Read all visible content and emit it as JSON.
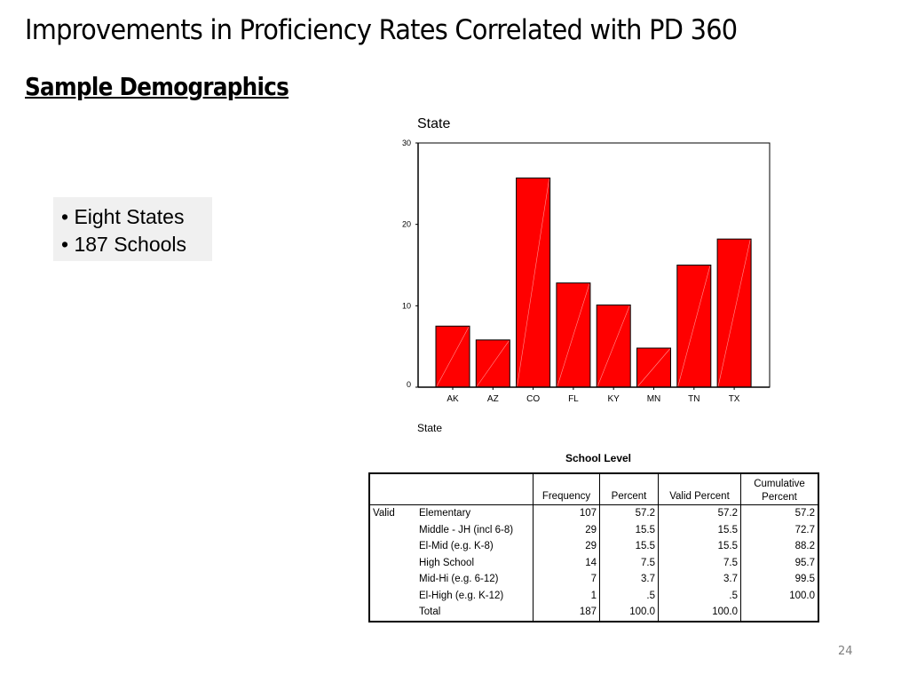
{
  "slide": {
    "title": "Improvements in Proficiency Rates Correlated with PD 360",
    "subtitle": "Sample Demographics",
    "bullets": [
      "• Eight States",
      "• 187 Schools"
    ],
    "page_number": "24"
  },
  "chart_data": {
    "type": "bar",
    "title": "State",
    "xlabel": "State",
    "ylabel": "",
    "categories": [
      "AK",
      "AZ",
      "CO",
      "FL",
      "KY",
      "MN",
      "TN",
      "TX"
    ],
    "values": [
      7.5,
      5.8,
      25.7,
      12.8,
      10.1,
      4.8,
      15.0,
      18.2
    ],
    "ylim": [
      0,
      30
    ],
    "yticks": [
      0,
      10,
      20,
      30
    ],
    "grid": false,
    "legend": "none",
    "bar_color": "#ff0000"
  },
  "table": {
    "title": "School Level",
    "headers": [
      "",
      "",
      "Frequency",
      "Percent",
      "Valid Percent",
      "Cumulative Percent"
    ],
    "group_label": "Valid",
    "rows": [
      {
        "label": "Elementary",
        "frequency": "107",
        "percent": "57.2",
        "valid_percent": "57.2",
        "cumulative_percent": "57.2"
      },
      {
        "label": "Middle - JH (incl 6-8)",
        "frequency": "29",
        "percent": "15.5",
        "valid_percent": "15.5",
        "cumulative_percent": "72.7"
      },
      {
        "label": "El-Mid (e.g. K-8)",
        "frequency": "29",
        "percent": "15.5",
        "valid_percent": "15.5",
        "cumulative_percent": "88.2"
      },
      {
        "label": "High School",
        "frequency": "14",
        "percent": "7.5",
        "valid_percent": "7.5",
        "cumulative_percent": "95.7"
      },
      {
        "label": "Mid-Hi (e.g. 6-12)",
        "frequency": "7",
        "percent": "3.7",
        "valid_percent": "3.7",
        "cumulative_percent": "99.5"
      },
      {
        "label": "El-High (e.g. K-12)",
        "frequency": "1",
        "percent": ".5",
        "valid_percent": ".5",
        "cumulative_percent": "100.0"
      },
      {
        "label": "Total",
        "frequency": "187",
        "percent": "100.0",
        "valid_percent": "100.0",
        "cumulative_percent": ""
      }
    ]
  }
}
